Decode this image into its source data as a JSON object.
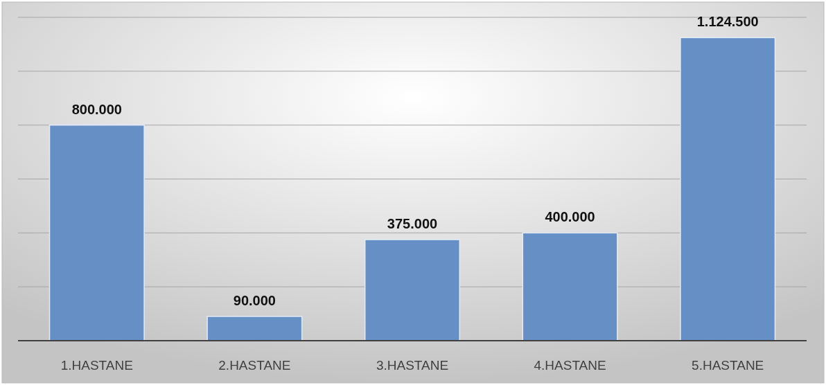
{
  "chart_data": {
    "type": "bar",
    "categories": [
      "1.HASTANE",
      "2.HASTANE",
      "3.HASTANE",
      "4.HASTANE",
      "5.HASTANE"
    ],
    "values": [
      800000,
      90000,
      375000,
      400000,
      1124500
    ],
    "color": "#658fc5",
    "value_labels": [
      "800.000",
      "90.000",
      "375.000",
      "400.000",
      "1.124.500"
    ],
    "ylim": [
      0,
      1200000
    ],
    "yticks": [
      {
        "value": 0,
        "label": null
      },
      {
        "value": 200000,
        "label": null
      },
      {
        "value": 400000,
        "label": null
      },
      {
        "value": 600000,
        "label": null
      },
      {
        "value": 800000,
        "label": null
      },
      {
        "value": 1000000,
        "label": null
      },
      {
        "value": 1200000,
        "label": null
      }
    ],
    "grid": "y",
    "tick_labels": "x"
  }
}
